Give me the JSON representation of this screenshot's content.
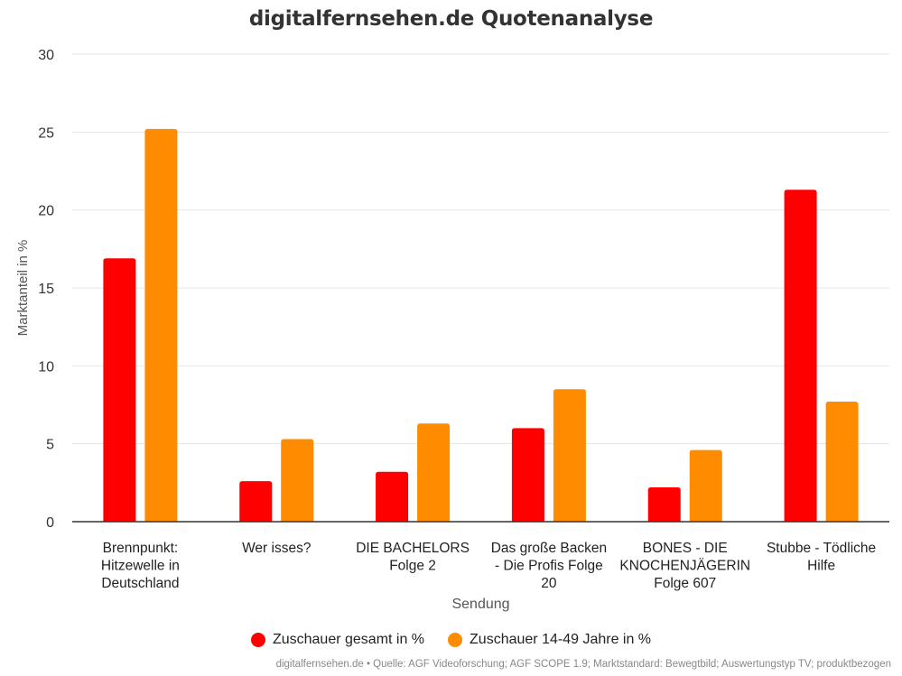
{
  "colors": {
    "series1": "#ff0000",
    "series2": "#ff8c00",
    "grid": "#e6e6e6",
    "axis": "#333333"
  },
  "legend": {
    "item1": "Zuschauer gesamt in %",
    "item2": "Zuschauer 14-49 Jahre in %"
  },
  "credits": "digitalfernsehen.de • Quelle: AGF Videoforschung; AGF SCOPE 1.9; Marktstandard: Bewegtbild; Auswertungstyp TV; produktbezogen",
  "chart_data": {
    "type": "bar",
    "title": "digitalfernsehen.de Quotenanalyse",
    "xlabel": "Sendung",
    "ylabel": "Marktanteil in %",
    "ylim": [
      0,
      30
    ],
    "yticks": [
      "0",
      "5",
      "10",
      "15",
      "20",
      "25",
      "30"
    ],
    "grid": true,
    "legend_position": "bottom-center",
    "categories": [
      [
        "Brennpunkt:",
        "Hitzewelle in",
        "Deutschland"
      ],
      [
        "Wer isses?"
      ],
      [
        "DIE BACHELORS",
        "Folge 2"
      ],
      [
        "Das große Backen",
        "- Die Profis Folge",
        "20"
      ],
      [
        "BONES - DIE",
        "KNOCHENJÄGERIN",
        "Folge 607"
      ],
      [
        "Stubbe - Tödliche",
        "Hilfe"
      ]
    ],
    "series": [
      {
        "name": "Zuschauer gesamt in %",
        "values": [
          16.9,
          2.6,
          3.2,
          6.0,
          2.2,
          21.3
        ]
      },
      {
        "name": "Zuschauer 14-49 Jahre in %",
        "values": [
          25.2,
          5.3,
          6.3,
          8.5,
          4.6,
          7.7
        ]
      }
    ]
  }
}
